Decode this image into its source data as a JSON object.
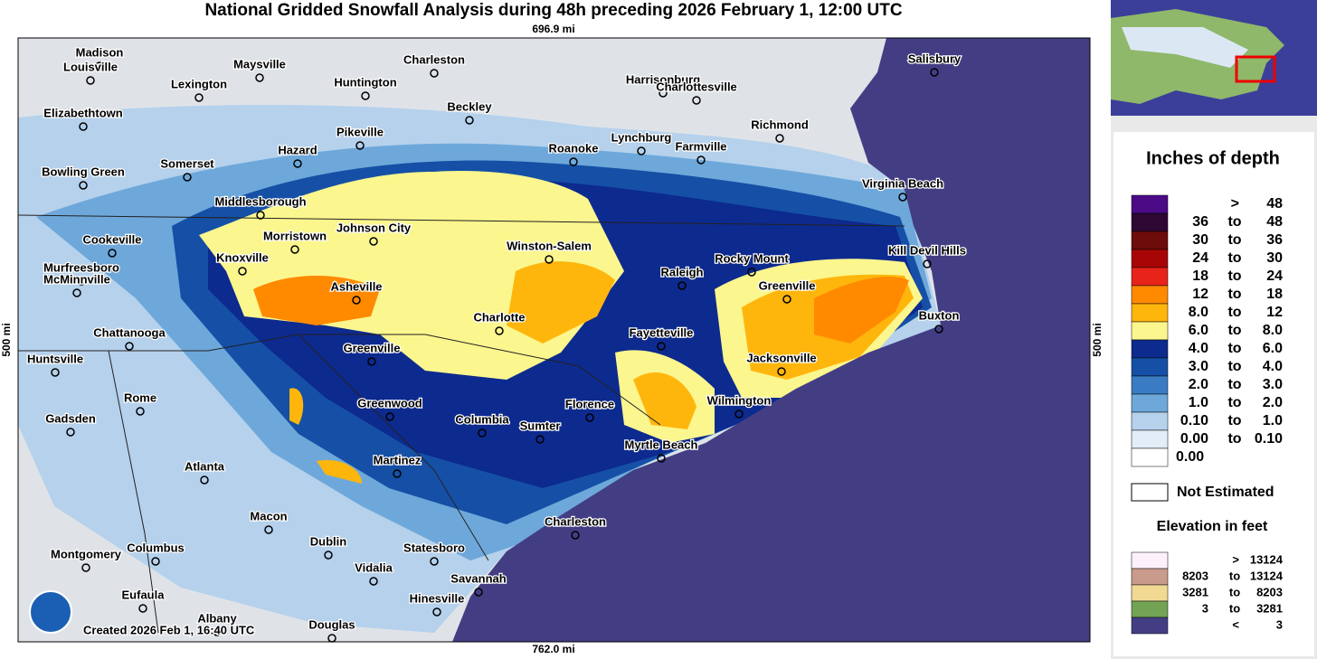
{
  "title": "National Gridded Snowfall Analysis during 48h preceding 2026 February 1, 12:00 UTC",
  "scale": {
    "top": "696.9 mi",
    "bottom": "762.0 mi",
    "left": "500 mi",
    "right": "500 mi"
  },
  "created": "Created 2026 Feb 1, 16:40 UTC",
  "cities": [
    "Madison",
    "Louisville",
    "Maysville",
    "Charleston",
    "Harrisonburg",
    "Salisbury",
    "Lexington",
    "Huntington",
    "Charlottesville",
    "Elizabethtown",
    "Beckley",
    "Richmond",
    "Pikeville",
    "Lynchburg",
    "Farmville",
    "Hazard",
    "Roanoke",
    "Somerset",
    "Bowling Green",
    "Virginia Beach",
    "Middlesborough",
    "Johnson City",
    "Cookeville",
    "Morristown",
    "Winston-Salem",
    "Kill Devil Hills",
    "Knoxville",
    "Rocky Mount",
    "Murfreesboro",
    "McMinnville",
    "Raleigh",
    "Asheville",
    "Greenville",
    "Buxton",
    "Charlotte",
    "Chattanooga",
    "Fayetteville",
    "Greenville",
    "Jacksonville",
    "Huntsville",
    "Rome",
    "Wilmington",
    "Florence",
    "Greenwood",
    "Gadsden",
    "Columbia",
    "Sumter",
    "Myrtle Beach",
    "Martinez",
    "Atlanta",
    "Macon",
    "Charleston",
    "Dublin",
    "Columbus",
    "Statesboro",
    "Montgomery",
    "Vidalia",
    "Savannah",
    "Eufaula",
    "Hinesville",
    "Albany",
    "Douglas"
  ],
  "legend": {
    "title": "Inches of depth",
    "items": [
      {
        "low": ">",
        "high": "48",
        "color": "#4b0a86"
      },
      {
        "low": "36",
        "sep": "to",
        "high": "48",
        "color": "#2e0733"
      },
      {
        "low": "30",
        "sep": "to",
        "high": "36",
        "color": "#6e0b0b"
      },
      {
        "low": "24",
        "sep": "to",
        "high": "30",
        "color": "#a80606"
      },
      {
        "low": "18",
        "sep": "to",
        "high": "24",
        "color": "#e8231a"
      },
      {
        "low": "12",
        "sep": "to",
        "high": "18",
        "color": "#ff8a00"
      },
      {
        "low": "8.0",
        "sep": "to",
        "high": "12",
        "color": "#ffb60c"
      },
      {
        "low": "6.0",
        "sep": "to",
        "high": "8.0",
        "color": "#fbf68e"
      },
      {
        "low": "4.0",
        "sep": "to",
        "high": "6.0",
        "color": "#0d2a8e"
      },
      {
        "low": "3.0",
        "sep": "to",
        "high": "4.0",
        "color": "#1550a6"
      },
      {
        "low": "2.0",
        "sep": "to",
        "high": "3.0",
        "color": "#3a7cc4"
      },
      {
        "low": "1.0",
        "sep": "to",
        "high": "2.0",
        "color": "#6ea8da"
      },
      {
        "low": "0.10",
        "sep": "to",
        "high": "1.0",
        "color": "#b5d1ec"
      },
      {
        "low": "0.00",
        "sep": "to",
        "high": "0.10",
        "color": "#e2edf7"
      },
      {
        "low": "0.00",
        "color": "#ffffff"
      }
    ],
    "not_estimated": "Not Estimated",
    "elevation_title": "Elevation in feet",
    "elevation_items": [
      {
        "low": ">",
        "high": "13124",
        "color": "#fdf0fb"
      },
      {
        "low": "8203",
        "sep": "to",
        "high": "13124",
        "color": "#c99b8c"
      },
      {
        "low": "3281",
        "sep": "to",
        "high": "8203",
        "color": "#f1d993"
      },
      {
        "low": "3",
        "sep": "to",
        "high": "3281",
        "color": "#73a355"
      },
      {
        "low": "<",
        "high": "3",
        "color": "#433e84"
      }
    ]
  }
}
